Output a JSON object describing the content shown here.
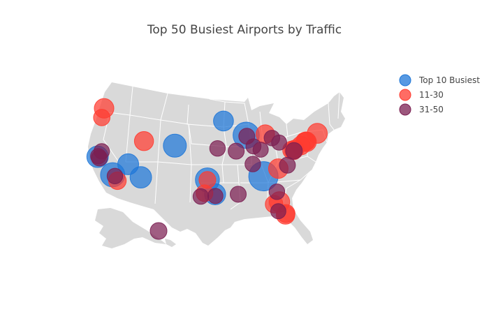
{
  "title": "Top 50 Busiest Airports by Traffic",
  "colors": {
    "land": "#d9d9d9",
    "state_border": "#ffffff",
    "top10": "#1f77d8",
    "mid": "#ff3b30",
    "low": "#7b1f52"
  },
  "legend": {
    "items": [
      {
        "label": "Top 10 Busiest",
        "group": "top10"
      },
      {
        "label": "11-30",
        "group": "mid"
      },
      {
        "label": "31-50",
        "group": "low"
      }
    ]
  },
  "chart_data": {
    "type": "scatter",
    "projection": "albers-usa",
    "title": "Top 50 Busiest Airports by Traffic",
    "legend_position": "top-right",
    "points": [
      {
        "group": "top10",
        "lon": -84.43,
        "lat": 33.64,
        "size": 1.0
      },
      {
        "group": "top10",
        "lon": -87.9,
        "lat": 41.98,
        "size": 0.84
      },
      {
        "group": "top10",
        "lon": -118.41,
        "lat": 33.94,
        "size": 0.74
      },
      {
        "group": "top10",
        "lon": -97.04,
        "lat": 32.9,
        "size": 0.73
      },
      {
        "group": "top10",
        "lon": -104.67,
        "lat": 39.86,
        "size": 0.68
      },
      {
        "group": "top10",
        "lon": -112.01,
        "lat": 33.43,
        "size": 0.6
      },
      {
        "group": "top10",
        "lon": -115.15,
        "lat": 36.08,
        "size": 0.57
      },
      {
        "group": "top10",
        "lon": -122.38,
        "lat": 37.62,
        "size": 0.6
      },
      {
        "group": "top10",
        "lon": -95.34,
        "lat": 29.98,
        "size": 0.58
      },
      {
        "group": "top10",
        "lon": -93.22,
        "lat": 44.88,
        "size": 0.52
      },
      {
        "group": "mid",
        "lon": -122.31,
        "lat": 47.45,
        "size": 0.5
      },
      {
        "group": "mid",
        "lon": -122.6,
        "lat": 45.59,
        "size": 0.34
      },
      {
        "group": "mid",
        "lon": -111.98,
        "lat": 40.79,
        "size": 0.48
      },
      {
        "group": "mid",
        "lon": -117.19,
        "lat": 32.73,
        "size": 0.4
      },
      {
        "group": "mid",
        "lon": -83.35,
        "lat": 42.21,
        "size": 0.45
      },
      {
        "group": "mid",
        "lon": -80.94,
        "lat": 35.21,
        "size": 0.5
      },
      {
        "group": "mid",
        "lon": -97.67,
        "lat": 30.19,
        "size": 0.36
      },
      {
        "group": "mid",
        "lon": -97.04,
        "lat": 32.9,
        "size": 0.36
      },
      {
        "group": "mid",
        "lon": -81.31,
        "lat": 28.43,
        "size": 0.54
      },
      {
        "group": "mid",
        "lon": -80.29,
        "lat": 25.79,
        "size": 0.45
      },
      {
        "group": "mid",
        "lon": -82.53,
        "lat": 27.97,
        "size": 0.4
      },
      {
        "group": "mid",
        "lon": -71.01,
        "lat": 42.36,
        "size": 0.52
      },
      {
        "group": "mid",
        "lon": -73.78,
        "lat": 40.64,
        "size": 0.5
      },
      {
        "group": "mid",
        "lon": -74.17,
        "lat": 40.69,
        "size": 0.45
      },
      {
        "group": "mid",
        "lon": -73.87,
        "lat": 40.78,
        "size": 0.45
      },
      {
        "group": "mid",
        "lon": -75.24,
        "lat": 39.87,
        "size": 0.45
      },
      {
        "group": "mid",
        "lon": -77.04,
        "lat": 38.85,
        "size": 0.42
      },
      {
        "group": "mid",
        "lon": -77.46,
        "lat": 38.95,
        "size": 0.42
      },
      {
        "group": "mid",
        "lon": -76.67,
        "lat": 39.18,
        "size": 0.42
      },
      {
        "group": "mid",
        "lon": -80.15,
        "lat": 26.07,
        "size": 0.42
      },
      {
        "group": "low",
        "lon": -121.93,
        "lat": 37.36,
        "size": 0.32
      },
      {
        "group": "low",
        "lon": -122.22,
        "lat": 37.72,
        "size": 0.3
      },
      {
        "group": "low",
        "lon": -121.59,
        "lat": 38.7,
        "size": 0.3
      },
      {
        "group": "low",
        "lon": -117.87,
        "lat": 33.68,
        "size": 0.3
      },
      {
        "group": "low",
        "lon": -94.71,
        "lat": 39.3,
        "size": 0.3
      },
      {
        "group": "low",
        "lon": -90.37,
        "lat": 38.75,
        "size": 0.32
      },
      {
        "group": "low",
        "lon": -87.75,
        "lat": 41.79,
        "size": 0.32
      },
      {
        "group": "low",
        "lon": -86.29,
        "lat": 39.72,
        "size": 0.28
      },
      {
        "group": "low",
        "lon": -84.67,
        "lat": 39.05,
        "size": 0.28
      },
      {
        "group": "low",
        "lon": -81.85,
        "lat": 41.41,
        "size": 0.3
      },
      {
        "group": "low",
        "lon": -80.23,
        "lat": 40.49,
        "size": 0.28
      },
      {
        "group": "low",
        "lon": -78.79,
        "lat": 35.88,
        "size": 0.32
      },
      {
        "group": "low",
        "lon": -90.26,
        "lat": 29.99,
        "size": 0.32
      },
      {
        "group": "low",
        "lon": -98.47,
        "lat": 29.53,
        "size": 0.3
      },
      {
        "group": "low",
        "lon": -95.28,
        "lat": 29.65,
        "size": 0.28
      },
      {
        "group": "low",
        "lon": -81.69,
        "lat": 30.49,
        "size": 0.3
      },
      {
        "group": "low",
        "lon": -81.75,
        "lat": 26.53,
        "size": 0.28
      },
      {
        "group": "low",
        "lon": -86.68,
        "lat": 36.13,
        "size": 0.3
      },
      {
        "group": "low",
        "lon": -157.92,
        "lat": 21.32,
        "size": 0.36
      },
      {
        "group": "low",
        "lon": -76.95,
        "lat": 38.8,
        "size": 0.36
      }
    ]
  }
}
